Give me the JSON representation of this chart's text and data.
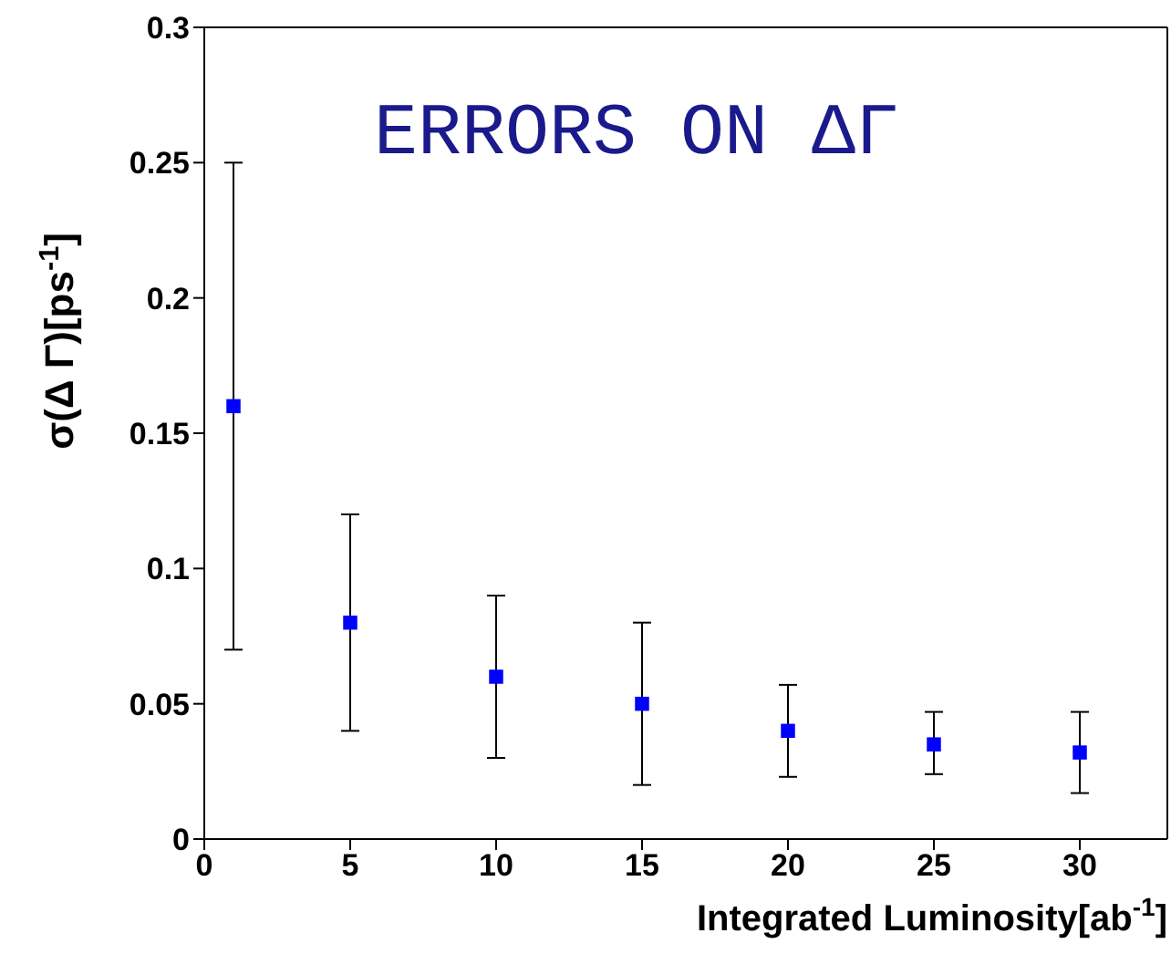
{
  "chart_data": {
    "type": "scatter",
    "title": "ERRORS ON ΔΓ",
    "xlabel": "Integrated Luminosity[ab$^{-1}$]",
    "ylabel": "σ(Δ Γ)[ps$^{-1}$]",
    "x": [
      1,
      5,
      10,
      15,
      20,
      25,
      30
    ],
    "values": [
      0.16,
      0.08,
      0.06,
      0.05,
      0.04,
      0.035,
      0.032
    ],
    "errors": [
      [
        0.07,
        0.25
      ],
      [
        0.04,
        0.12
      ],
      [
        0.03,
        0.09
      ],
      [
        0.02,
        0.08
      ],
      [
        0.023,
        0.057
      ],
      [
        0.024,
        0.047
      ],
      [
        0.017,
        0.047
      ]
    ],
    "color": "#0000ff",
    "marker": "square",
    "xlim": [
      0,
      33
    ],
    "xticks": [
      0,
      5,
      10,
      15,
      20,
      25,
      30
    ],
    "ylim": [
      0,
      0.3
    ],
    "yticks": [
      0,
      0.05,
      0.1,
      0.15,
      0.2,
      0.25,
      0.3
    ]
  }
}
